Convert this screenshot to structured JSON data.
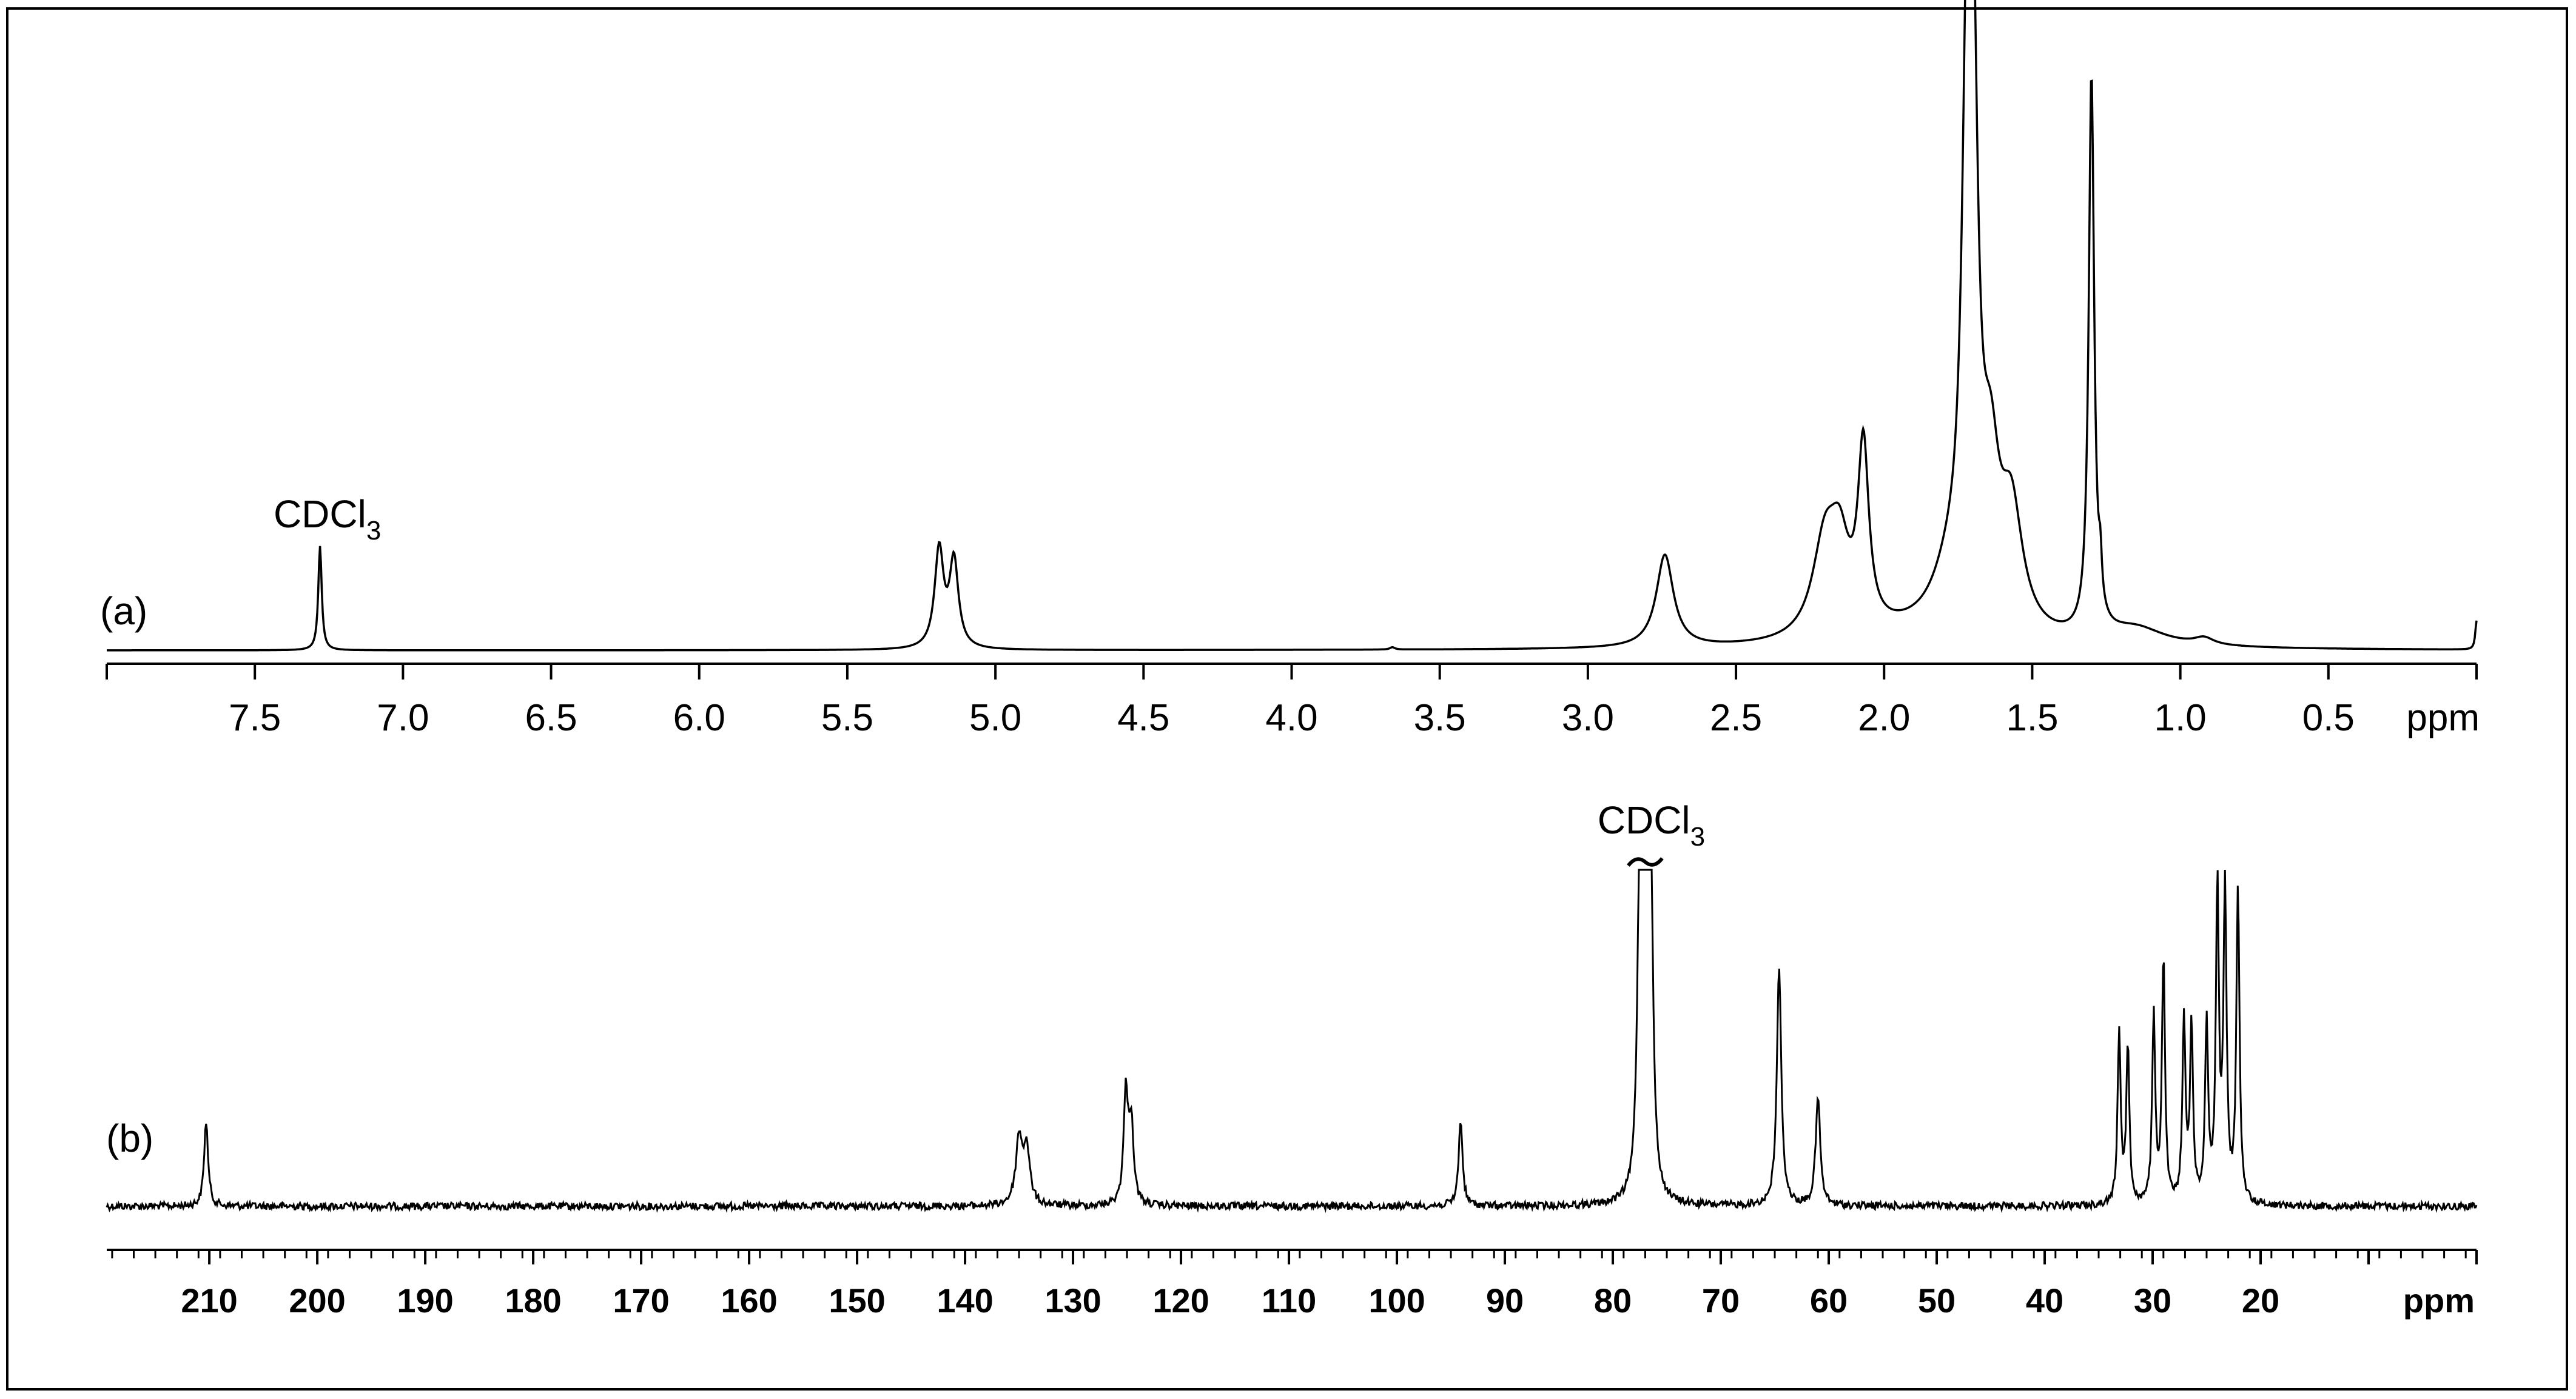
{
  "chart_data": [
    {
      "type": "line",
      "panel_label": "(a)",
      "title": "",
      "xlabel": "ppm",
      "ylabel": "",
      "x_reversed": true,
      "xlim": [
        8.0,
        0.0
      ],
      "tick_labels": [
        "7.5",
        "7.0",
        "6.5",
        "6.0",
        "5.5",
        "5.0",
        "4.5",
        "4.0",
        "3.5",
        "3.0",
        "2.5",
        "2.0",
        "1.5",
        "1.0",
        "0.5"
      ],
      "tick_values": [
        7.5,
        7.0,
        6.5,
        6.0,
        5.5,
        5.0,
        4.5,
        4.0,
        3.5,
        3.0,
        2.5,
        2.0,
        1.5,
        1.0,
        0.5
      ],
      "grid": false,
      "annotations": [
        {
          "text": "CDCl",
          "subscript": "3",
          "x": 7.28
        }
      ],
      "peaks": [
        {
          "ppm": 7.28,
          "height": 0.18,
          "width": 0.007
        },
        {
          "ppm": 5.19,
          "height": 0.17,
          "width": 0.018
        },
        {
          "ppm": 5.14,
          "height": 0.15,
          "width": 0.018
        },
        {
          "ppm": 3.66,
          "height": 0.004,
          "width": 0.01
        },
        {
          "ppm": 2.74,
          "height": 0.16,
          "width": 0.035
        },
        {
          "ppm": 2.2,
          "height": 0.16,
          "width": 0.05
        },
        {
          "ppm": 2.15,
          "height": 0.13,
          "width": 0.04
        },
        {
          "ppm": 2.07,
          "height": 0.31,
          "width": 0.022
        },
        {
          "ppm": 1.88,
          "height": 0.02,
          "width": 0.25
        },
        {
          "ppm": 1.78,
          "height": 0.08,
          "width": 0.07
        },
        {
          "ppm": 1.72,
          "height": 0.8,
          "width": 0.02
        },
        {
          "ppm": 1.7,
          "height": 0.8,
          "width": 0.02
        },
        {
          "ppm": 1.64,
          "height": 0.23,
          "width": 0.035
        },
        {
          "ppm": 1.57,
          "height": 0.2,
          "width": 0.045
        },
        {
          "ppm": 1.3,
          "height": 0.97,
          "width": 0.011
        },
        {
          "ppm": 1.27,
          "height": 0.07,
          "width": 0.006
        },
        {
          "ppm": 1.15,
          "height": 0.03,
          "width": 0.12
        },
        {
          "ppm": 0.92,
          "height": 0.012,
          "width": 0.04
        },
        {
          "ppm": 0.0,
          "height": 0.05,
          "width": 0.005
        }
      ],
      "intensity_max": 1.0
    },
    {
      "type": "line",
      "panel_label": "(b)",
      "title": "",
      "xlabel": "ppm",
      "ylabel": "",
      "x_reversed": true,
      "xlim": [
        219.5,
        0.0
      ],
      "tick_labels": [
        "210",
        "200",
        "190",
        "180",
        "170",
        "160",
        "150",
        "140",
        "130",
        "120",
        "110",
        "100",
        "90",
        "80",
        "70",
        "60",
        "50",
        "40",
        "30",
        "20"
      ],
      "tick_values": [
        210,
        200,
        190,
        180,
        170,
        160,
        150,
        140,
        130,
        120,
        110,
        100,
        90,
        80,
        70,
        60,
        50,
        40,
        30,
        20
      ],
      "grid": false,
      "annotations": [
        {
          "text": "CDCl",
          "subscript": "3",
          "x": 77.0
        }
      ],
      "peaks": [
        {
          "ppm": 210.3,
          "height": 0.26,
          "width": 0.22
        },
        {
          "ppm": 135.0,
          "height": 0.2,
          "width": 0.35
        },
        {
          "ppm": 134.3,
          "height": 0.17,
          "width": 0.35
        },
        {
          "ppm": 125.1,
          "height": 0.34,
          "width": 0.25
        },
        {
          "ppm": 124.6,
          "height": 0.24,
          "width": 0.25
        },
        {
          "ppm": 94.1,
          "height": 0.26,
          "width": 0.22
        },
        {
          "ppm": 77.5,
          "height": 1.0,
          "width": 0.25
        },
        {
          "ppm": 77.0,
          "height": 1.0,
          "width": 0.25
        },
        {
          "ppm": 76.5,
          "height": 1.0,
          "width": 0.25
        },
        {
          "ppm": 64.6,
          "height": 0.72,
          "width": 0.25
        },
        {
          "ppm": 61.0,
          "height": 0.33,
          "width": 0.25
        },
        {
          "ppm": 33.1,
          "height": 0.53,
          "width": 0.17
        },
        {
          "ppm": 32.3,
          "height": 0.48,
          "width": 0.17
        },
        {
          "ppm": 29.9,
          "height": 0.57,
          "width": 0.17
        },
        {
          "ppm": 29.0,
          "height": 0.75,
          "width": 0.17
        },
        {
          "ppm": 27.1,
          "height": 0.56,
          "width": 0.17
        },
        {
          "ppm": 26.4,
          "height": 0.53,
          "width": 0.17
        },
        {
          "ppm": 25.0,
          "height": 0.55,
          "width": 0.17
        },
        {
          "ppm": 24.0,
          "height": 0.95,
          "width": 0.17
        },
        {
          "ppm": 23.3,
          "height": 0.96,
          "width": 0.17
        },
        {
          "ppm": 22.1,
          "height": 0.97,
          "width": 0.17
        }
      ],
      "intensity_max": 1.0
    }
  ]
}
